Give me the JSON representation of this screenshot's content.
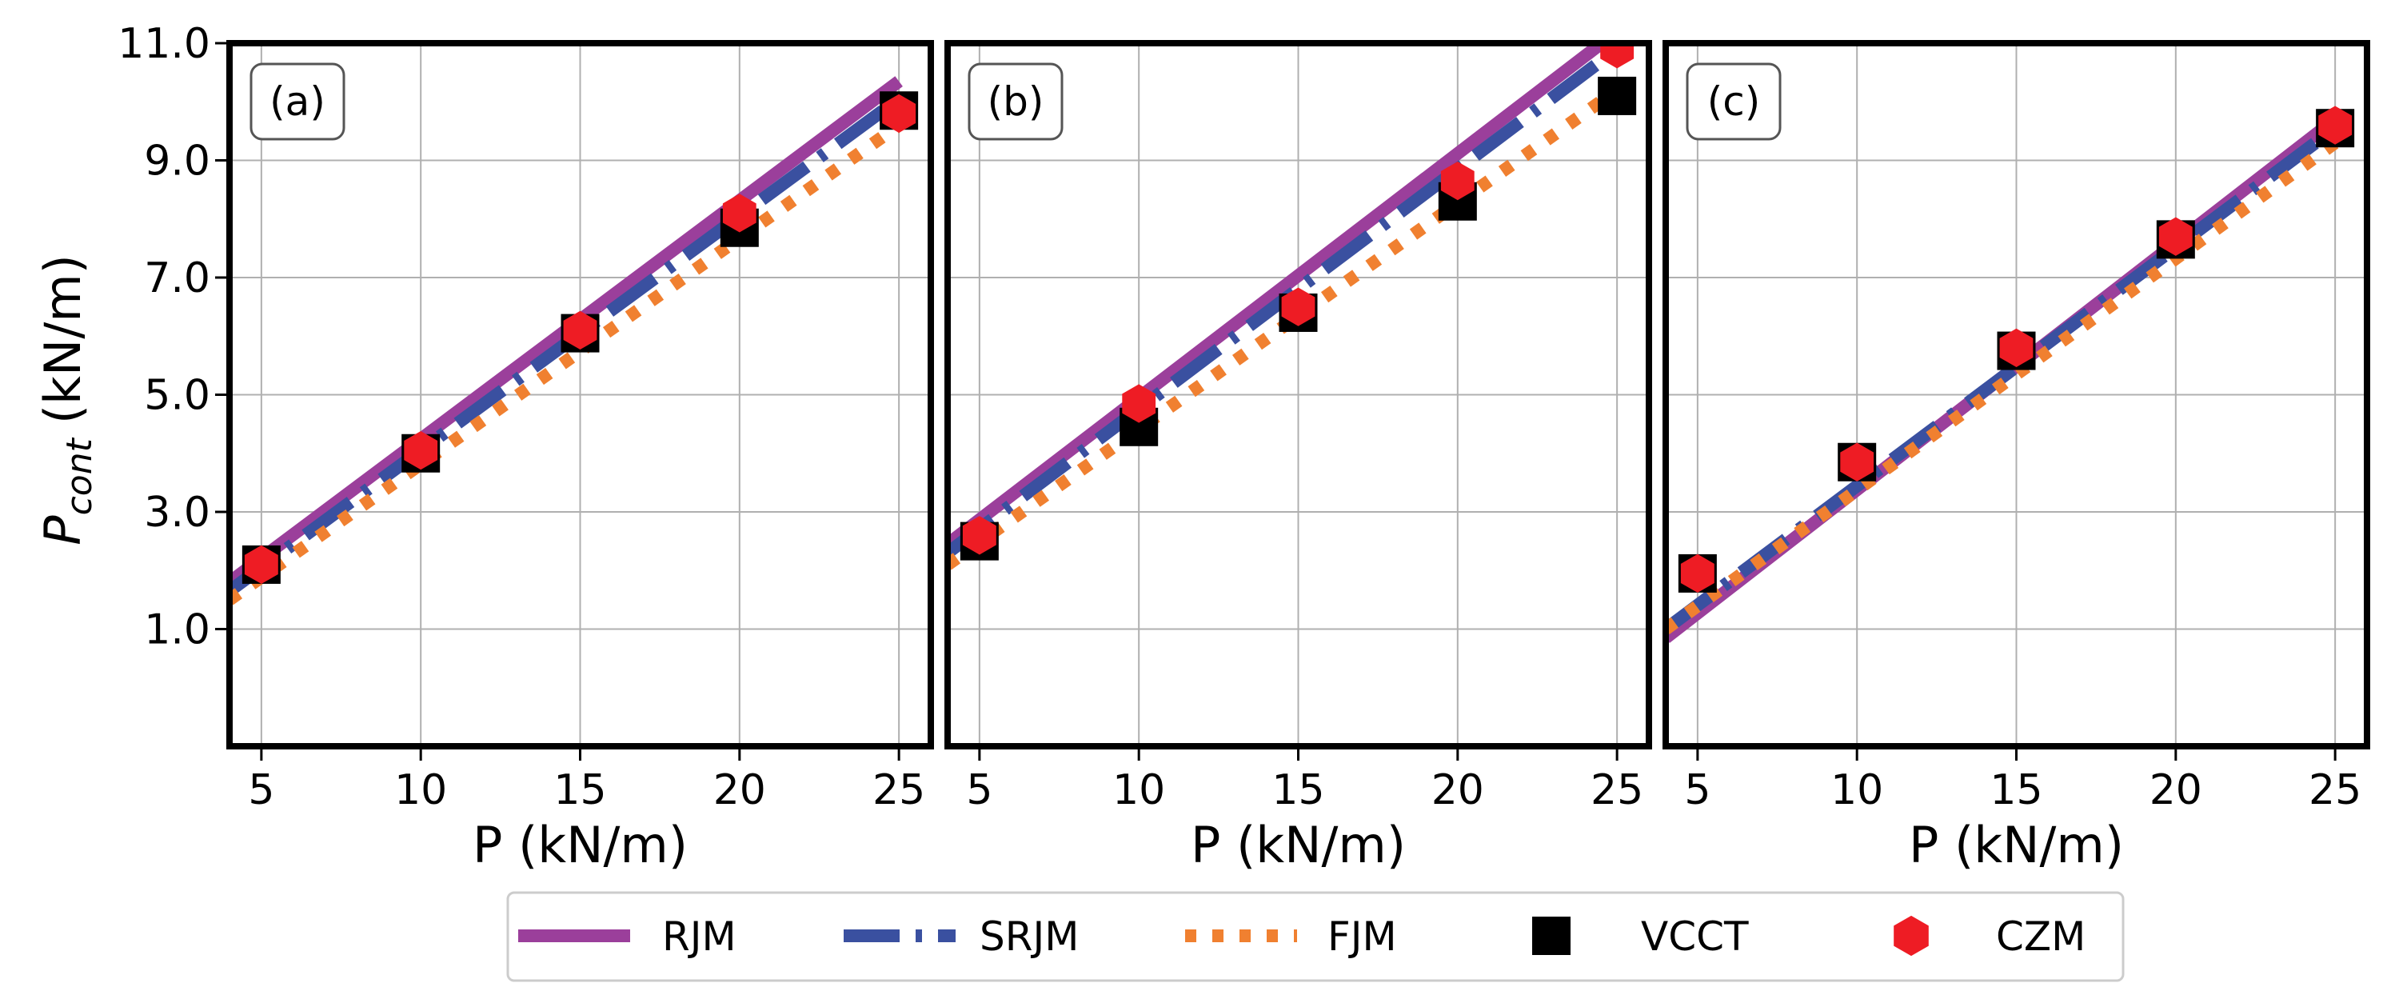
{
  "chart_data": {
    "type": "line",
    "ylabel_main": "P",
    "ylabel_sub": "cont",
    "ylabel_unit": "(kN/m)",
    "xlabel": "P (kN/m)",
    "xlim": [
      4,
      26
    ],
    "ylim": [
      -1,
      11
    ],
    "xticks": [
      5,
      10,
      15,
      20,
      25
    ],
    "yticks": [
      "1.0",
      "3.0",
      "5.0",
      "7.0",
      "9.0",
      "11.0"
    ],
    "ytick_values": [
      1,
      3,
      5,
      7,
      9,
      11
    ],
    "grid": true,
    "legend_position": "bottom-center",
    "series_style": {
      "RJM": {
        "color": "#9b3f9b",
        "style": "solid"
      },
      "SRJM": {
        "color": "#3a50a0",
        "style": "dashdot"
      },
      "FJM": {
        "color": "#f08030",
        "style": "dotted"
      },
      "VCCT": {
        "color": "#000000",
        "marker": "square"
      },
      "CZM": {
        "color": "#ee1c24",
        "marker": "hexagon"
      }
    },
    "legend": [
      "RJM",
      "SRJM",
      "FJM",
      "VCCT",
      "CZM"
    ],
    "panels": [
      {
        "label": "(a)",
        "lines": {
          "RJM": {
            "x": [
              4,
              25
            ],
            "y": [
              1.8,
              10.35
            ]
          },
          "SRJM": {
            "x": [
              4,
              25
            ],
            "y": [
              1.65,
              10.05
            ]
          },
          "FJM": {
            "x": [
              4,
              25
            ],
            "y": [
              1.5,
              9.6
            ]
          }
        },
        "points": {
          "x": [
            5,
            10,
            15,
            20,
            25
          ],
          "VCCT": [
            2.1,
            4.0,
            6.05,
            7.85,
            9.85
          ],
          "CZM": [
            2.1,
            4.05,
            6.1,
            8.1,
            9.8
          ]
        }
      },
      {
        "label": "(b)",
        "lines": {
          "RJM": {
            "x": [
              4,
              25
            ],
            "y": [
              2.45,
              11.2
            ]
          },
          "SRJM": {
            "x": [
              4,
              25
            ],
            "y": [
              2.3,
              10.9
            ]
          },
          "FJM": {
            "x": [
              4,
              25
            ],
            "y": [
              2.1,
              10.2
            ]
          }
        },
        "points": {
          "x": [
            5,
            10,
            15,
            20,
            25
          ],
          "VCCT": [
            2.5,
            4.45,
            6.4,
            8.3,
            10.1
          ],
          "CZM": [
            2.6,
            4.85,
            6.5,
            8.65,
            10.9
          ]
        }
      },
      {
        "label": "(c)",
        "lines": {
          "RJM": {
            "x": [
              4,
              25
            ],
            "y": [
              0.85,
              9.7
            ]
          },
          "SRJM": {
            "x": [
              4,
              25
            ],
            "y": [
              1.0,
              9.55
            ]
          },
          "FJM": {
            "x": [
              4,
              25
            ],
            "y": [
              1.0,
              9.3
            ]
          }
        },
        "points": {
          "x": [
            5,
            10,
            15,
            20,
            25
          ],
          "VCCT": [
            1.95,
            3.85,
            5.75,
            7.65,
            9.55
          ],
          "CZM": [
            1.95,
            3.85,
            5.8,
            7.7,
            9.6
          ]
        }
      }
    ]
  }
}
